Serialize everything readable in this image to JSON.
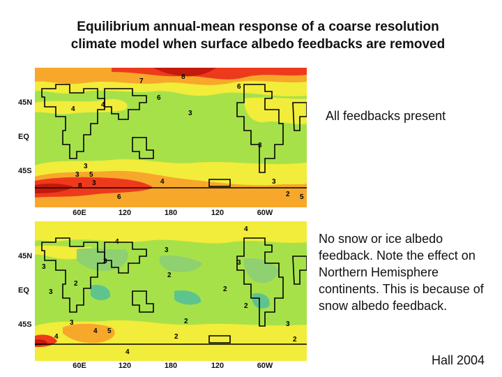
{
  "title_line1": "Equilibrium annual-mean response of a coarse resolution",
  "title_line2": "climate model when surface albedo feedbacks are removed",
  "lat_labels": [
    "45N",
    "EQ",
    "45S"
  ],
  "lon_labels": [
    "60E",
    "120",
    "180",
    "120",
    "60W"
  ],
  "panels": [
    {
      "caption": "All feedbacks present",
      "contour_labels": [
        "7",
        "8",
        "6",
        "3",
        "4",
        "6",
        "4",
        "3",
        "3",
        "3",
        "5",
        "6",
        "8",
        "3",
        "4",
        "3",
        "2",
        "5"
      ]
    },
    {
      "caption": "No snow or ice albedo feedback.  Note the effect on Northern Hemisphere continents.  This is because of snow albedo feedback.",
      "contour_labels": [
        "4",
        "3",
        "3",
        "4",
        "3",
        "2",
        "3",
        "2",
        "2",
        "2",
        "3",
        "4",
        "5",
        "4",
        "2",
        "3",
        "2",
        "4",
        "3",
        "2"
      ]
    }
  ],
  "credit": "Hall 2004",
  "colors": {
    "green": "#a6e14a",
    "yellow": "#f2ec3a",
    "orange": "#f7a82a",
    "red": "#ee3a1c",
    "darkred": "#c41a0c",
    "lightgreen": "#8fd070",
    "teal": "#5ec48e",
    "coast": "#000000"
  }
}
